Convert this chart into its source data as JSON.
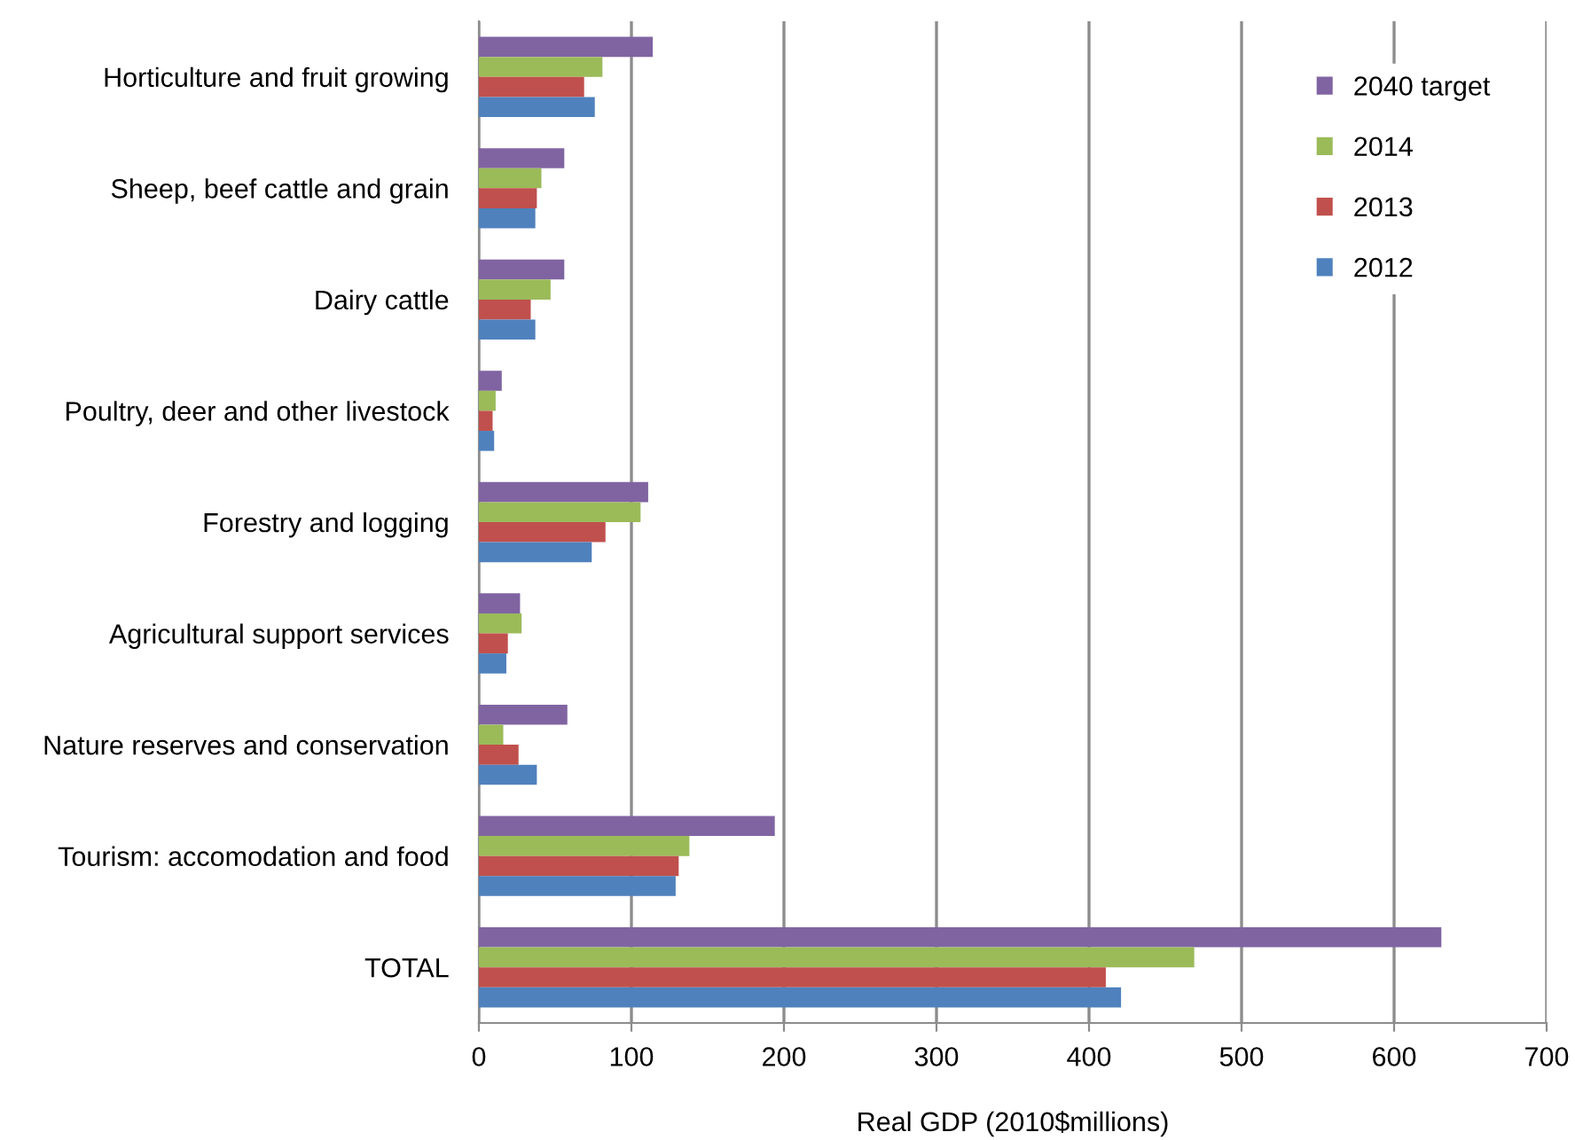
{
  "chart_data": {
    "type": "bar",
    "orientation": "horizontal",
    "xlabel": "Real GDP (2010$millions)",
    "categories": [
      "Horticulture and fruit growing",
      "Sheep, beef cattle and grain",
      "Dairy cattle",
      "Poultry, deer and other livestock",
      "Forestry and logging",
      "Agricultural support services",
      "Nature reserves and conservation",
      "Tourism: accomodation and food",
      "TOTAL"
    ],
    "series": [
      {
        "name": "2040 target",
        "color": "#8064a2",
        "values": [
          114,
          56,
          56,
          15,
          111,
          27,
          58,
          194,
          631
        ]
      },
      {
        "name": "2014",
        "color": "#9bbb59",
        "values": [
          81,
          41,
          47,
          11,
          106,
          28,
          16,
          138,
          469
        ]
      },
      {
        "name": "2013",
        "color": "#c0504d",
        "values": [
          69,
          38,
          34,
          9,
          83,
          19,
          26,
          131,
          411
        ]
      },
      {
        "name": "2012",
        "color": "#4f81bd",
        "values": [
          76,
          37,
          37,
          10,
          74,
          18,
          38,
          129,
          421
        ]
      }
    ],
    "xlim": [
      0,
      700
    ],
    "xticks": [
      0,
      100,
      200,
      300,
      400,
      500,
      600,
      700
    ],
    "grid": "x",
    "legend": "top right"
  }
}
